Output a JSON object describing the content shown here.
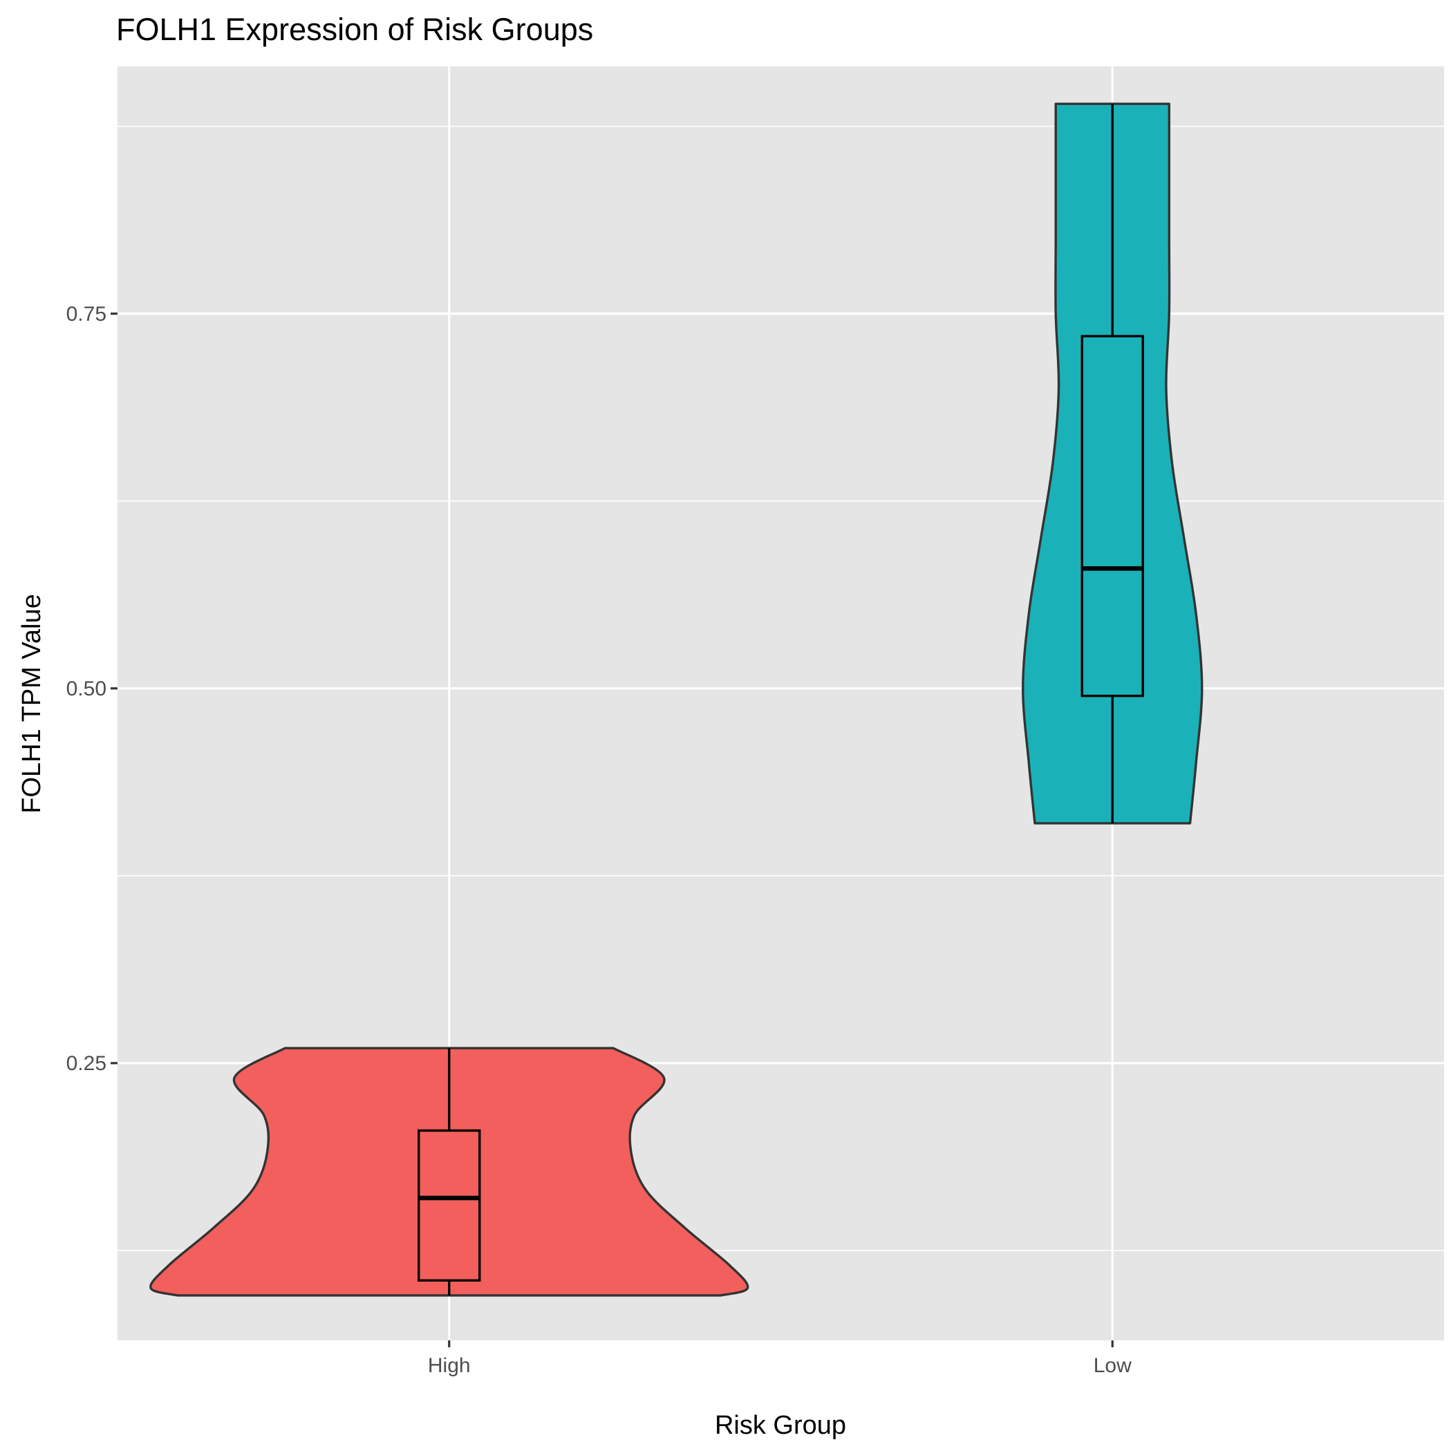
{
  "chart_data": {
    "type": "violin",
    "title": "FOLH1 Expression of Risk Groups",
    "xlabel": "Risk Group",
    "ylabel": "FOLH1 TPM Value",
    "categories": [
      "High",
      "Low"
    ],
    "ylim": [
      0.065,
      0.915
    ],
    "yticks": [
      0.25,
      0.5,
      0.75
    ],
    "ytick_labels": [
      "0.25",
      "0.50",
      "0.75"
    ],
    "grid": true,
    "legend": "none",
    "groups": [
      {
        "category": "High",
        "fill": "#F25F5C",
        "min": 0.095,
        "q1": 0.105,
        "median": 0.16,
        "q3": 0.205,
        "max": 0.26,
        "density": [
          {
            "y": 0.095,
            "w": 0.91
          },
          {
            "y": 0.1,
            "w": 1.0
          },
          {
            "y": 0.115,
            "w": 0.94
          },
          {
            "y": 0.14,
            "w": 0.79
          },
          {
            "y": 0.165,
            "w": 0.66
          },
          {
            "y": 0.19,
            "w": 0.61
          },
          {
            "y": 0.215,
            "w": 0.62
          },
          {
            "y": 0.24,
            "w": 0.72
          },
          {
            "y": 0.26,
            "w": 0.55
          }
        ]
      },
      {
        "category": "Low",
        "fill": "#1AB2B8",
        "min": 0.41,
        "q1": 0.495,
        "median": 0.58,
        "q3": 0.735,
        "max": 0.89,
        "density": [
          {
            "y": 0.41,
            "w": 0.26
          },
          {
            "y": 0.45,
            "w": 0.28
          },
          {
            "y": 0.5,
            "w": 0.3
          },
          {
            "y": 0.55,
            "w": 0.28
          },
          {
            "y": 0.6,
            "w": 0.24
          },
          {
            "y": 0.65,
            "w": 0.2
          },
          {
            "y": 0.7,
            "w": 0.18
          },
          {
            "y": 0.75,
            "w": 0.19
          },
          {
            "y": 0.8,
            "w": 0.19
          },
          {
            "y": 0.85,
            "w": 0.19
          },
          {
            "y": 0.89,
            "w": 0.19
          }
        ]
      }
    ]
  }
}
